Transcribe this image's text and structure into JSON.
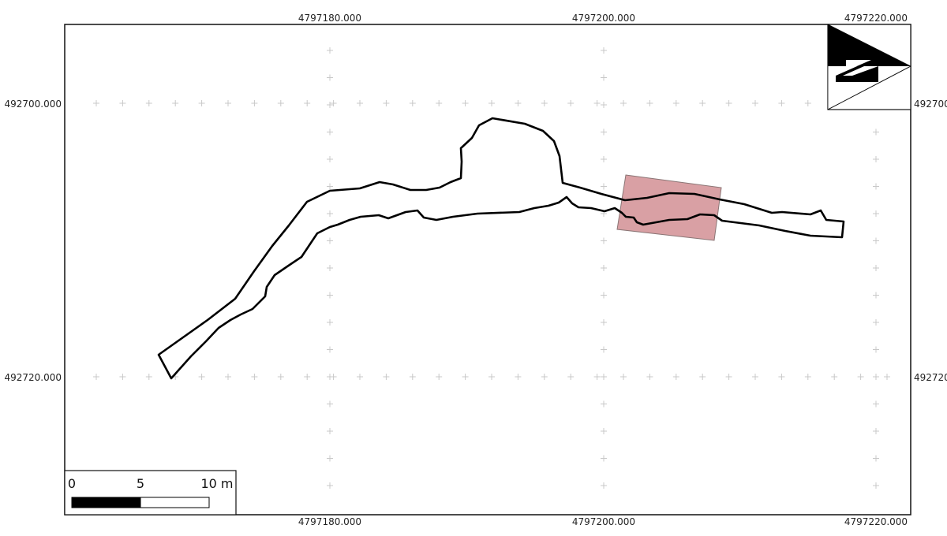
{
  "map": {
    "top_labels": [
      "4797180.000",
      "4797200.000",
      "4797220.000"
    ],
    "bottom_labels": [
      "4797180.000",
      "4797200.000",
      "4797220.000"
    ],
    "left_labels": [
      "492700.000",
      "492720.000"
    ],
    "right_labels": [
      "492700",
      "492720"
    ]
  },
  "scale_bar": {
    "labels": [
      "0",
      "5",
      "10 m"
    ]
  },
  "north_arrow": {
    "letter": "N"
  },
  "colors": {
    "frame": "#111111",
    "grid_cross": "#c8c8c8",
    "trace": "#000000",
    "highlight_fill": "#d9a0a4",
    "highlight_stroke": "#8a7575"
  }
}
